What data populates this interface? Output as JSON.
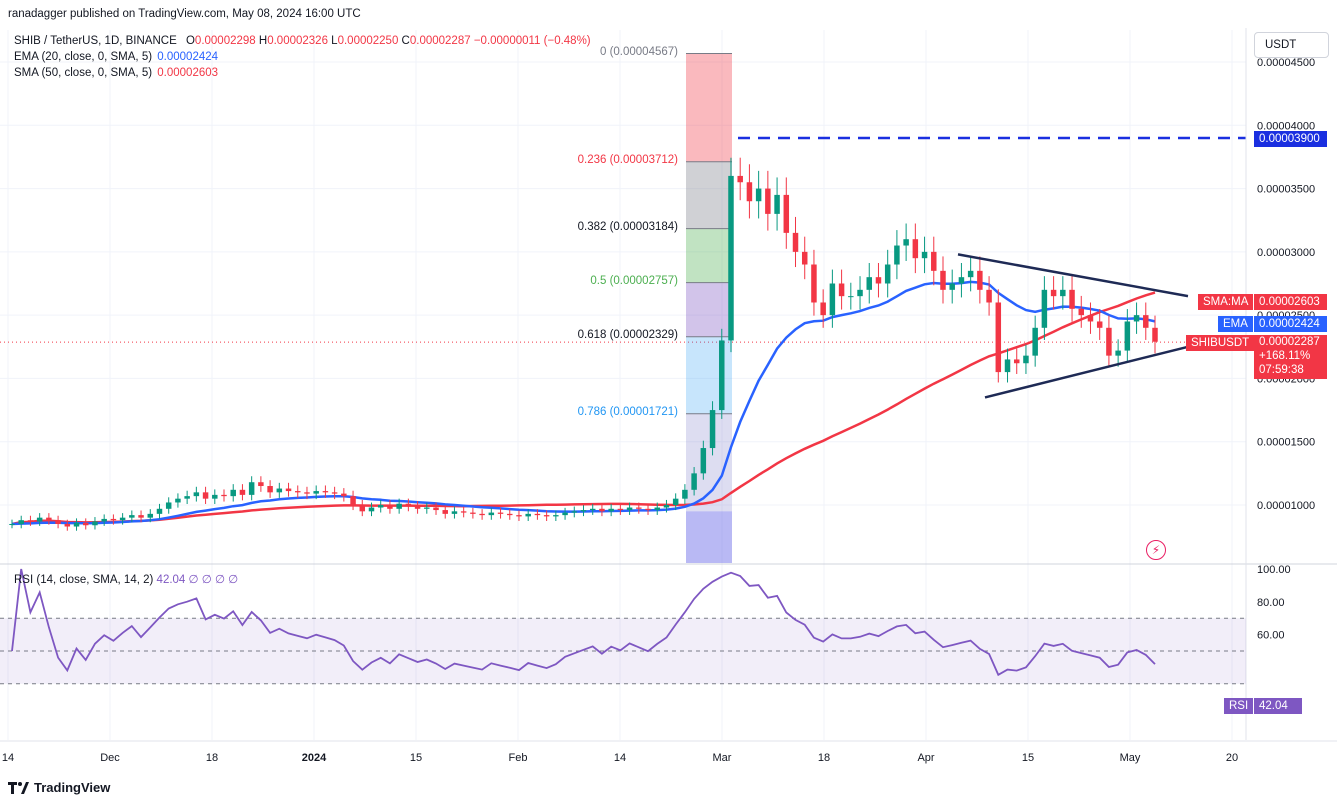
{
  "header": {
    "published": "ranadagger published on TradingView.com, May 08, 2024 16:00 UTC"
  },
  "legend": {
    "symbol": "SHIB / TetherUS, 1D, BINANCE",
    "ohlc": {
      "o_label": "O",
      "o": "0.00002298",
      "h_label": "H",
      "h": "0.00002326",
      "l_label": "L",
      "l": "0.00002250",
      "c_label": "C",
      "c": "0.00002287",
      "change": "−0.00000011 (−0.48%)"
    },
    "ema": {
      "label": "EMA (20, close, 0, SMA, 5)",
      "value": "0.00002424"
    },
    "sma": {
      "label": "SMA (50, close, 0, SMA, 5)",
      "value": "0.00002603"
    }
  },
  "currency_button": "USDT",
  "badges": {
    "resistance": "0.00003900",
    "sma_tag": "SMA:MA",
    "sma_value": "0.00002603",
    "ema_tag": "EMA",
    "ema_value": "0.00002424",
    "symbol_tag": "SHIBUSDT",
    "last_price": "0.00002287",
    "change_pct": "+168.11%",
    "countdown": "07:59:38",
    "rsi_tag": "RSI",
    "rsi_value": "42.04"
  },
  "rsi_legend": {
    "label": "RSI (14, close, SMA, 14, 2)",
    "value": "42.04",
    "extras": "∅ ∅ ∅ ∅"
  },
  "footer": {
    "brand": "TradingView"
  },
  "colors": {
    "up": "#089981",
    "down": "#f23645",
    "ema": "#2962ff",
    "sma": "#f23645",
    "rsi": "#7e57c2",
    "trendline": "#1e2a55",
    "grid": "#f0f3fa"
  },
  "chart_data": {
    "type": "line",
    "symbol": "SHIB / TetherUS",
    "timeframe": "1D",
    "price_axis": {
      "ticks": [
        "0.00004500",
        "0.00004000",
        "0.00003500",
        "0.00003000",
        "0.00002500",
        "0.00002000",
        "0.00001500",
        "0.00001000"
      ],
      "tick_values": [
        4.5e-05,
        4e-05,
        3.5e-05,
        3e-05,
        2.5e-05,
        2e-05,
        1.5e-05,
        1e-05
      ]
    },
    "time_axis": {
      "ticks": [
        "14",
        "Dec",
        "18",
        "2024",
        "15",
        "Feb",
        "14",
        "Mar",
        "18",
        "Apr",
        "15",
        "May",
        "20"
      ]
    },
    "fibonacci": [
      {
        "label": "0 (0.00004567)",
        "value": 4.567e-05
      },
      {
        "label": "0.236 (0.00003712)",
        "value": 3.712e-05
      },
      {
        "label": "0.382 (0.00003184)",
        "value": 3.184e-05
      },
      {
        "label": "0.5 (0.00002757)",
        "value": 2.757e-05
      },
      {
        "label": "0.618 (0.00002329)",
        "value": 2.329e-05
      },
      {
        "label": "0.786 (0.00001721)",
        "value": 1.721e-05
      }
    ],
    "resistance_level": 3.9e-05,
    "series": [
      {
        "name": "SHIBUSDT",
        "last": 2.287e-05,
        "close": [
          8.5e-06,
          8.8e-06,
          8.7e-06,
          9e-06,
          8.8e-06,
          8.5e-06,
          8.3e-06,
          8.6e-06,
          8.4e-06,
          8.7e-06,
          8.9e-06,
          8.8e-06,
          9e-06,
          9.2e-06,
          9e-06,
          9.3e-06,
          9.7e-06,
          1.02e-05,
          1.05e-05,
          1.07e-05,
          1.1e-05,
          1.05e-05,
          1.08e-05,
          1.07e-05,
          1.12e-05,
          1.08e-05,
          1.18e-05,
          1.15e-05,
          1.1e-05,
          1.13e-05,
          1.11e-05,
          1.1e-05,
          1.09e-05,
          1.11e-05,
          1.1e-05,
          1.09e-05,
          1.07e-05,
          1e-05,
          9.5e-06,
          9.8e-06,
          1e-05,
          9.7e-06,
          1.01e-05,
          9.9e-06,
          9.7e-06,
          9.8e-06,
          9.6e-06,
          9.3e-06,
          9.5e-06,
          9.4e-06,
          9.3e-06,
          9.2e-06,
          9.4e-06,
          9.3e-06,
          9.2e-06,
          9.1e-06,
          9.3e-06,
          9.2e-06,
          9.1e-06,
          9.2e-06,
          9.4e-06,
          9.5e-06,
          9.6e-06,
          9.7e-06,
          9.5e-06,
          9.7e-06,
          9.6e-06,
          9.8e-06,
          9.7e-06,
          9.6e-06,
          9.8e-06,
          1e-05,
          1.05e-05,
          1.12e-05,
          1.25e-05,
          1.45e-05,
          1.75e-05,
          2.3e-05,
          3.6e-05,
          3.55e-05,
          3.4e-05,
          3.5e-05,
          3.3e-05,
          3.45e-05,
          3.15e-05,
          3e-05,
          2.9e-05,
          2.6e-05,
          2.5e-05,
          2.75e-05,
          2.65e-05,
          2.65e-05,
          2.7e-05,
          2.8e-05,
          2.75e-05,
          2.9e-05,
          3.05e-05,
          3.1e-05,
          2.95e-05,
          3e-05,
          2.85e-05,
          2.7e-05,
          2.75e-05,
          2.8e-05,
          2.85e-05,
          2.7e-05,
          2.6e-05,
          2.05e-05,
          2.15e-05,
          2.12e-05,
          2.18e-05,
          2.4e-05,
          2.7e-05,
          2.65e-05,
          2.7e-05,
          2.55e-05,
          2.5e-05,
          2.45e-05,
          2.4e-05,
          2.18e-05,
          2.22e-05,
          2.45e-05,
          2.5e-05,
          2.4e-05,
          2.29e-05
        ]
      },
      {
        "name": "EMA (20)",
        "last": 2.424e-05
      },
      {
        "name": "SMA (50)",
        "last": 2.603e-05
      }
    ],
    "rsi": {
      "name": "RSI (14)",
      "last": 42.04,
      "ticks": [
        "100.00",
        "80.00",
        "60.00"
      ],
      "tick_values": [
        100,
        80,
        60
      ],
      "upper_band": 70,
      "lower_band": 30,
      "middle": 50
    }
  }
}
